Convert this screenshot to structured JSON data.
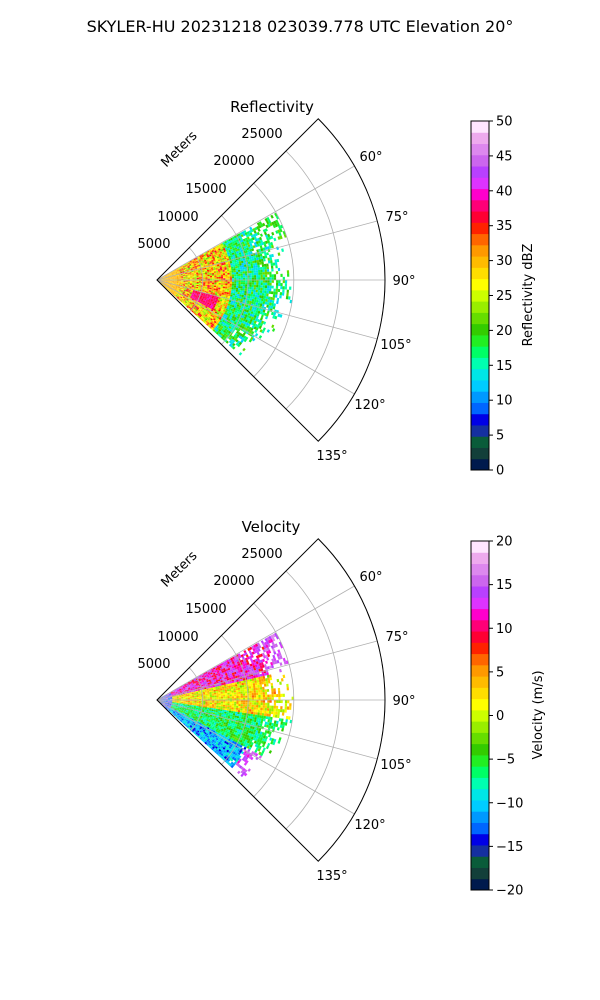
{
  "figure_title": "SKYLER-HU  20231218  023039.778 UTC Elevation 20°",
  "chart_data": [
    {
      "type": "heatmap",
      "title": "Reflectivity",
      "radial_axis_label": "Meters",
      "radial_ticks": [
        5000,
        10000,
        15000,
        20000,
        25000
      ],
      "radial_tick_labels": [
        "5000",
        "10000",
        "15000",
        "20000",
        "25000"
      ],
      "radial_range": [
        0,
        25000
      ],
      "azimuth_range_deg": [
        45,
        135
      ],
      "azimuth_ticks_deg": [
        60,
        75,
        90,
        105,
        120,
        135
      ],
      "azimuth_tick_labels": [
        "60°",
        "75°",
        "90°",
        "105°",
        "120°",
        "135°"
      ],
      "colorbar": {
        "label": "Reflectivity dBZ",
        "range": [
          0,
          50
        ],
        "ticks": [
          0,
          5,
          10,
          15,
          20,
          25,
          30,
          35,
          40,
          45,
          50
        ],
        "tick_labels": [
          "0",
          "5",
          "10",
          "15",
          "20",
          "25",
          "30",
          "35",
          "40",
          "45",
          "50"
        ],
        "colormap": [
          "#001a4d",
          "#123f3a",
          "#0a5c3a",
          "#1530a0",
          "#0000e6",
          "#0066ff",
          "#0099ff",
          "#00ccff",
          "#00e6e6",
          "#00ffb0",
          "#00ff66",
          "#22ee22",
          "#33cc00",
          "#66dd00",
          "#99ee00",
          "#ccff00",
          "#ffff00",
          "#ffdd00",
          "#ffbb00",
          "#ff9900",
          "#ff6600",
          "#ff2200",
          "#ff0033",
          "#ff0077",
          "#ff00cc",
          "#dd33ff",
          "#b840ff",
          "#cc66ee",
          "#dd88ee",
          "#eeaaee",
          "#ffe6ff"
        ]
      },
      "grid": true,
      "data_description_range_m": [
        0,
        15000
      ],
      "dominant_values_dBZ": {
        "near_0_3km": [
          25,
          35
        ],
        "3_8km": [
          20,
          35
        ],
        "8_15km": [
          12,
          22
        ]
      }
    },
    {
      "type": "heatmap",
      "title": "Velocity",
      "radial_axis_label": "Meters",
      "radial_ticks": [
        5000,
        10000,
        15000,
        20000,
        25000
      ],
      "radial_tick_labels": [
        "5000",
        "10000",
        "15000",
        "20000",
        "25000"
      ],
      "radial_range": [
        0,
        25000
      ],
      "azimuth_range_deg": [
        45,
        135
      ],
      "azimuth_ticks_deg": [
        60,
        75,
        90,
        105,
        120,
        135
      ],
      "azimuth_tick_labels": [
        "60°",
        "75°",
        "90°",
        "105°",
        "120°",
        "135°"
      ],
      "colorbar": {
        "label": "Velocity (m/s)",
        "range": [
          -20,
          20
        ],
        "ticks": [
          -20,
          -15,
          -10,
          -5,
          0,
          5,
          10,
          15,
          20
        ],
        "tick_labels": [
          "−20",
          "−15",
          "−10",
          "−5",
          "0",
          "5",
          "10",
          "15",
          "20"
        ],
        "colormap": [
          "#001a4d",
          "#123f3a",
          "#0a5c3a",
          "#1530a0",
          "#0000e6",
          "#0066ff",
          "#0099ff",
          "#00ccff",
          "#00e6e6",
          "#00ffb0",
          "#00ff66",
          "#22ee22",
          "#33cc00",
          "#66dd00",
          "#99ee00",
          "#ccff00",
          "#ffff00",
          "#ffdd00",
          "#ffbb00",
          "#ff9900",
          "#ff6600",
          "#ff2200",
          "#ff0033",
          "#ff0077",
          "#ff00cc",
          "#dd33ff",
          "#b840ff",
          "#cc66ee",
          "#dd88ee",
          "#eeaaee",
          "#ffe6ff"
        ]
      },
      "grid": true,
      "data_description_range_m": [
        0,
        15000
      ],
      "dominant_values_ms": {
        "north_sector": [
          5,
          15
        ],
        "center": [
          -5,
          5
        ],
        "south_sector": [
          -15,
          -5
        ]
      }
    }
  ]
}
